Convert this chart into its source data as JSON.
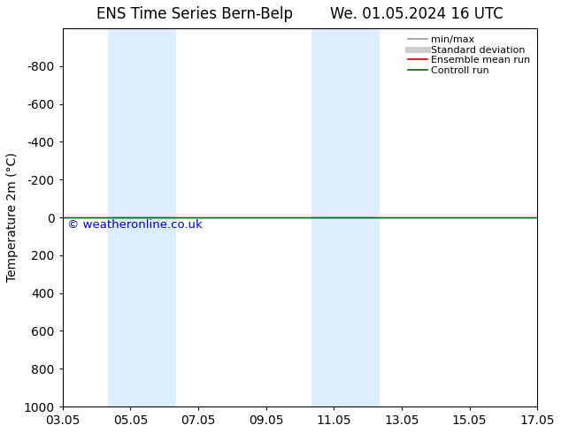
{
  "title_left": "ENS Time Series Bern-Belp",
  "title_right": "We. 01.05.2024 16 UTC",
  "ylabel": "Temperature 2m (°C)",
  "watermark": "© weatheronline.co.uk",
  "ylim_bottom": 1000,
  "ylim_top": -1000,
  "yticks": [
    -800,
    -600,
    -400,
    -200,
    0,
    200,
    400,
    600,
    800,
    1000
  ],
  "xtick_labels": [
    "03.05",
    "05.05",
    "07.05",
    "09.05",
    "11.05",
    "13.05",
    "15.05",
    "17.05"
  ],
  "xtick_positions": [
    0,
    2,
    4,
    6,
    8,
    10,
    12,
    14
  ],
  "xlim": [
    0,
    14
  ],
  "shaded_bands": [
    {
      "xmin": 1.33,
      "xmax": 3.33
    },
    {
      "xmin": 7.33,
      "xmax": 9.33
    }
  ],
  "shaded_color": "#ddeeff",
  "horizontal_line_y": 0,
  "line_green_color": "#006600",
  "line_red_color": "#cc0000",
  "background_color": "#ffffff",
  "legend_entries": [
    {
      "label": "min/max",
      "color": "#999999",
      "lw": 1.2,
      "style": "line"
    },
    {
      "label": "Standard deviation",
      "color": "#cccccc",
      "lw": 5,
      "style": "line"
    },
    {
      "label": "Ensemble mean run",
      "color": "#cc0000",
      "lw": 1.2,
      "style": "line"
    },
    {
      "label": "Controll run",
      "color": "#006600",
      "lw": 1.2,
      "style": "line"
    }
  ],
  "watermark_color": "#0000cc",
  "title_fontsize": 12,
  "label_fontsize": 10,
  "tick_fontsize": 10,
  "legend_fontsize": 8
}
